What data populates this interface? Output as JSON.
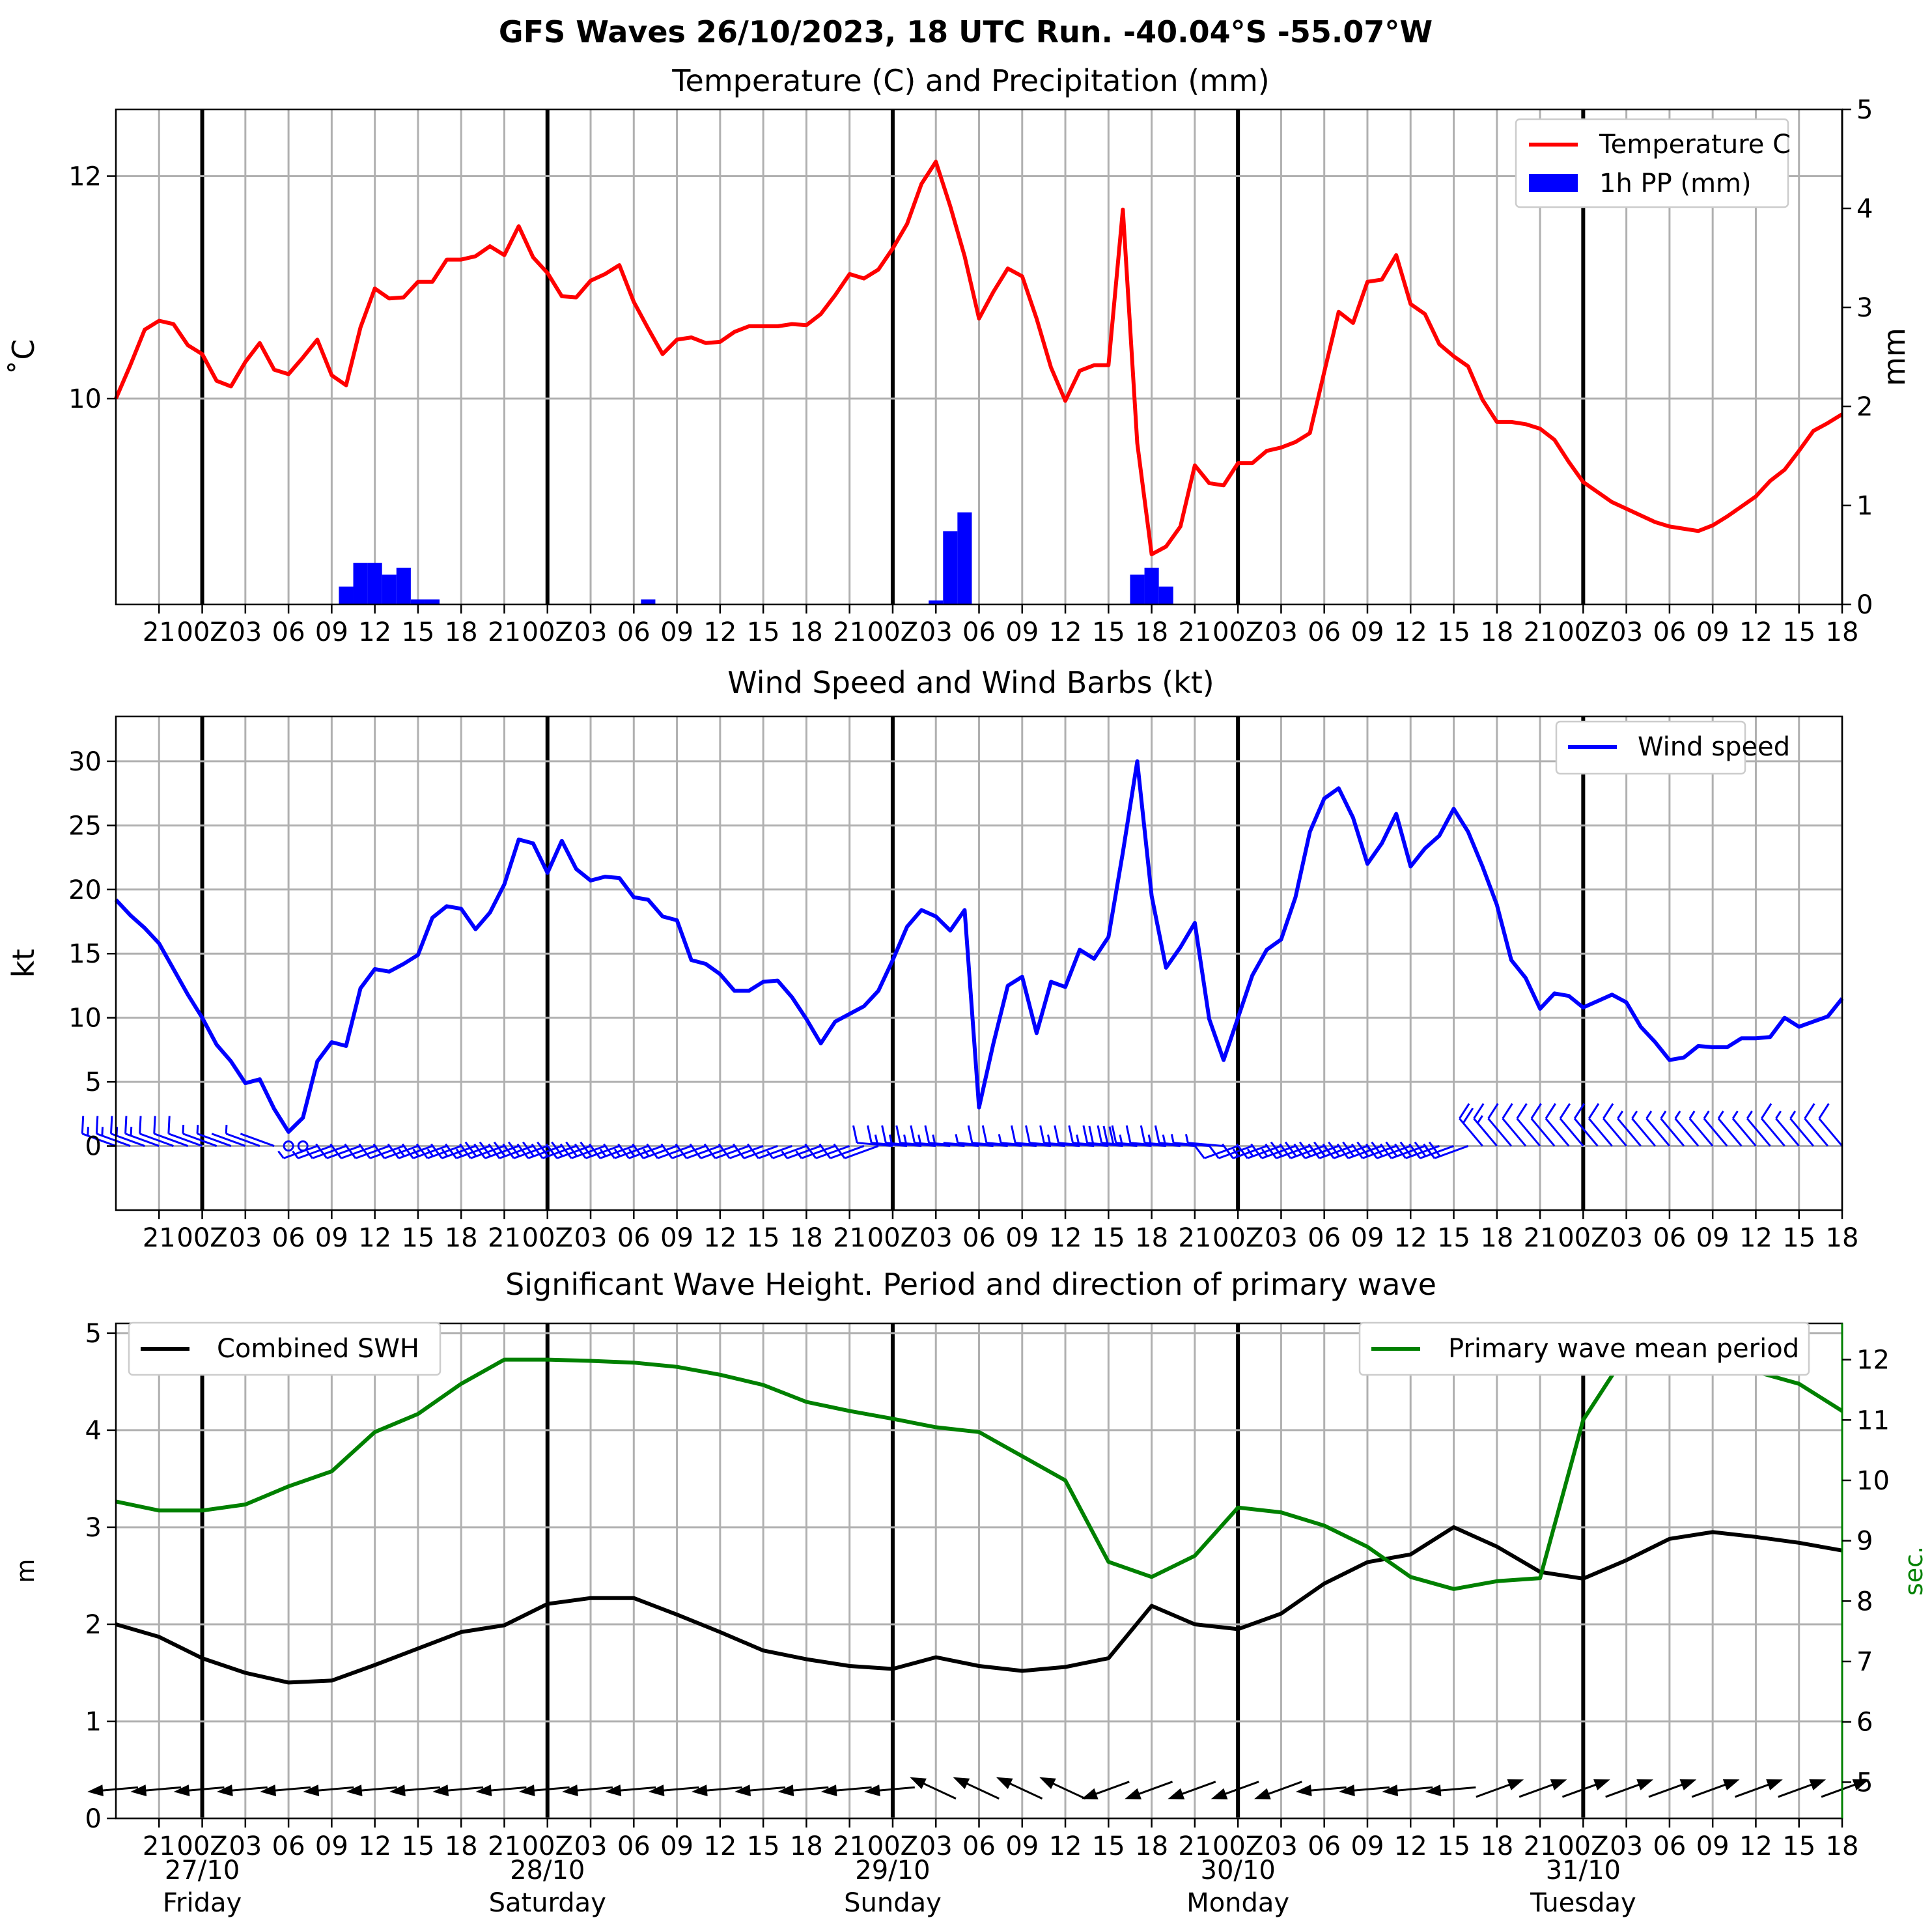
{
  "suptitle": "GFS Waves 26/10/2023, 18 UTC Run. -40.04°S -55.07°W",
  "x_ticks": [
    "21",
    "00Z",
    "03",
    "06",
    "09",
    "12",
    "15",
    "18",
    "21",
    "00Z",
    "03",
    "06",
    "09",
    "12",
    "15",
    "18",
    "21",
    "00Z",
    "03",
    "06",
    "09",
    "12",
    "15",
    "18",
    "21",
    "00Z",
    "03",
    "06",
    "09",
    "12",
    "15",
    "18",
    "21",
    "00Z",
    "03",
    "06",
    "09",
    "12",
    "15",
    "18"
  ],
  "bottom_x_ticks": [
    "21",
    "00Z",
    "03",
    "06",
    "09",
    "12",
    "15",
    "18",
    "21",
    "00Z",
    "03",
    "06",
    "09",
    "12",
    "15",
    "18",
    "21",
    "00Z",
    "03",
    "06",
    "09",
    "12",
    "15",
    "18",
    "21",
    "00Z",
    "03",
    "06",
    "09",
    "12",
    "15",
    "18",
    "21",
    "00Z",
    "03",
    "06",
    "09",
    "12",
    "15",
    "18"
  ],
  "days": [
    {
      "date": "27/10",
      "day": "Friday"
    },
    {
      "date": "28/10",
      "day": "Saturday"
    },
    {
      "date": "29/10",
      "day": "Sunday"
    },
    {
      "date": "30/10",
      "day": "Monday"
    },
    {
      "date": "31/10",
      "day": "Tuesday"
    }
  ],
  "chart_data": [
    {
      "type": "line",
      "title": "Temperature (C) and Precipitation (mm)",
      "ylabel": "$^\\circ$C",
      "ylabel_display": "˚C",
      "ylabel_right": "mm",
      "x_unit": "hours from 26/10 18 UTC",
      "xlim": [
        0,
        120
      ],
      "ylim": [
        8.15,
        12.6
      ],
      "y_ticks": [
        "10",
        "12"
      ],
      "ylim_right": [
        0,
        5
      ],
      "y_ticks_right": [
        "0",
        "1",
        "2",
        "3",
        "4",
        "5"
      ],
      "legend_position": "upper right",
      "grid": true,
      "series": [
        {
          "name": "Temperature C",
          "color": "#ff0000",
          "x": [
            0,
            1,
            2,
            3,
            4,
            5,
            6,
            7,
            8,
            9,
            10,
            11,
            12,
            13,
            14,
            15,
            16,
            17,
            18,
            19,
            20,
            21,
            22,
            23,
            24,
            25,
            26,
            27,
            28,
            29,
            30,
            31,
            32,
            33,
            34,
            35,
            36,
            37,
            38,
            39,
            40,
            41,
            42,
            43,
            44,
            45,
            46,
            47,
            48,
            49,
            50,
            51,
            52,
            53,
            54,
            55,
            56,
            57,
            58,
            59,
            60,
            61,
            62,
            63,
            64,
            65,
            66,
            67,
            68,
            69,
            70,
            71,
            72,
            73,
            74,
            75,
            76,
            77,
            78,
            79,
            80,
            81,
            82,
            83,
            84,
            85,
            86,
            87,
            88,
            89,
            90,
            91,
            92,
            93,
            94,
            95,
            96,
            97,
            98,
            99,
            100,
            101,
            102,
            103,
            104,
            105,
            106,
            107,
            108,
            109,
            110,
            111,
            112,
            113,
            114,
            115,
            116,
            117,
            118,
            119,
            120
          ],
          "values": [
            10.0,
            10.3,
            10.62,
            10.7,
            10.67,
            10.48,
            10.4,
            10.16,
            10.11,
            10.33,
            10.5,
            10.26,
            10.22,
            10.37,
            10.53,
            10.21,
            10.12,
            10.64,
            10.99,
            10.9,
            10.91,
            11.05,
            11.05,
            11.25,
            11.25,
            11.28,
            11.37,
            11.29,
            11.55,
            11.27,
            11.13,
            10.92,
            10.91,
            11.06,
            11.12,
            11.2,
            10.87,
            10.63,
            10.4,
            10.53,
            10.55,
            10.5,
            10.51,
            10.6,
            10.65,
            10.65,
            10.65,
            10.67,
            10.66,
            10.76,
            10.93,
            11.12,
            11.08,
            11.16,
            11.35,
            11.57,
            11.93,
            12.13,
            11.73,
            11.28,
            10.72,
            10.96,
            11.17,
            11.1,
            10.72,
            10.28,
            9.98,
            10.25,
            10.3,
            10.3,
            11.7,
            9.6,
            8.6,
            8.67,
            8.85,
            9.4,
            9.24,
            9.22,
            9.42,
            9.42,
            9.53,
            9.56,
            9.61,
            9.69,
            10.24,
            10.78,
            10.68,
            11.05,
            11.07,
            11.29,
            10.85,
            10.76,
            10.49,
            10.38,
            10.29,
            9.99,
            9.79,
            9.79,
            9.77,
            9.73,
            9.63,
            9.43,
            9.25,
            9.16,
            9.07,
            9.01,
            8.95,
            8.89,
            8.85,
            8.83,
            8.81,
            8.86,
            8.94,
            9.03,
            9.12,
            9.26,
            9.36,
            9.53,
            9.71,
            9.78,
            9.86
          ]
        },
        {
          "name": "1h PP (mm)",
          "type": "bar",
          "axis": "right",
          "color": "#0000ff",
          "x": [
            16,
            17,
            18,
            19,
            20,
            21,
            22,
            37,
            57,
            58,
            59,
            71,
            72,
            73
          ],
          "values": [
            0.18,
            0.42,
            0.42,
            0.3,
            0.37,
            0.05,
            0.05,
            0.05,
            0.04,
            0.74,
            0.93,
            0.3,
            0.37,
            0.18
          ]
        }
      ]
    },
    {
      "type": "line",
      "title": "Wind Speed and Wind Barbs (kt)",
      "ylabel": "kt",
      "x_unit": "hours from 26/10 18 UTC",
      "xlim": [
        0,
        120
      ],
      "ylim": [
        -5,
        33.5
      ],
      "y_ticks": [
        "0",
        "5",
        "10",
        "15",
        "20",
        "25",
        "30"
      ],
      "legend_position": "upper right",
      "grid": true,
      "series": [
        {
          "name": "Wind speed",
          "color": "#0000ff",
          "x": [
            0,
            1,
            2,
            3,
            4,
            5,
            6,
            7,
            8,
            9,
            10,
            11,
            12,
            13,
            14,
            15,
            16,
            17,
            18,
            19,
            20,
            21,
            22,
            23,
            24,
            25,
            26,
            27,
            28,
            29,
            30,
            31,
            32,
            33,
            34,
            35,
            36,
            37,
            38,
            39,
            40,
            41,
            42,
            43,
            44,
            45,
            46,
            47,
            48,
            49,
            50,
            51,
            52,
            53,
            54,
            55,
            56,
            57,
            58,
            59,
            60,
            61,
            62,
            63,
            64,
            65,
            66,
            67,
            68,
            69,
            70,
            71,
            72,
            73,
            74,
            75,
            76,
            77,
            78,
            79,
            80,
            81,
            82,
            83,
            84,
            85,
            86,
            87,
            88,
            89,
            90,
            91,
            92,
            93,
            94,
            95,
            96,
            97,
            98,
            99,
            100,
            101,
            102,
            103,
            104,
            105,
            106,
            107,
            108,
            109,
            110,
            111,
            112,
            113,
            114,
            115,
            116,
            117,
            118,
            119,
            120
          ],
          "values": [
            19.2,
            18.0,
            17.0,
            15.8,
            13.8,
            11.8,
            10.0,
            7.9,
            6.6,
            4.9,
            5.2,
            2.9,
            1.1,
            2.2,
            6.6,
            8.1,
            7.8,
            12.3,
            13.8,
            13.6,
            14.2,
            14.9,
            17.8,
            18.7,
            18.5,
            16.9,
            18.2,
            20.4,
            23.9,
            23.6,
            21.3,
            23.8,
            21.6,
            20.7,
            21.0,
            20.9,
            19.4,
            19.2,
            17.9,
            17.6,
            14.5,
            14.2,
            13.4,
            12.1,
            12.1,
            12.8,
            12.9,
            11.6,
            9.9,
            8.0,
            9.7,
            10.3,
            10.9,
            12.1,
            14.5,
            17.1,
            18.4,
            17.9,
            16.8,
            18.4,
            3.0,
            8.0,
            12.5,
            13.2,
            8.8,
            12.8,
            12.4,
            15.3,
            14.6,
            16.3,
            22.9,
            30.0,
            19.5,
            13.9,
            15.5,
            17.4,
            9.9,
            6.7,
            10.0,
            13.3,
            15.3,
            16.1,
            19.4,
            24.5,
            27.1,
            27.9,
            25.6,
            22.0,
            23.6,
            25.9,
            21.8,
            23.2,
            24.2,
            26.3,
            24.5,
            21.8,
            18.8,
            14.5,
            13.1,
            10.7,
            11.9,
            11.7,
            10.8,
            11.3,
            11.8,
            11.2,
            9.3,
            8.1,
            6.7,
            6.9,
            7.8,
            7.7,
            7.7,
            8.4,
            8.4,
            8.5,
            10.0,
            9.3,
            9.7,
            10.1,
            11.5
          ]
        }
      ],
      "wind_barbs": {
        "x": [
          0,
          1,
          2,
          3,
          4,
          5,
          6,
          7,
          8,
          9,
          10,
          11,
          12,
          13,
          14,
          15,
          16,
          17,
          18,
          19,
          20,
          21,
          22,
          23,
          24,
          25,
          26,
          27,
          28,
          29,
          30,
          31,
          32,
          33,
          34,
          35,
          36,
          37,
          38,
          39,
          40,
          41,
          42,
          43,
          44,
          45,
          46,
          47,
          48,
          49,
          50,
          51,
          52,
          53,
          54,
          55,
          56,
          57,
          58,
          59,
          60,
          61,
          62,
          63,
          64,
          65,
          66,
          67,
          68,
          69,
          70,
          71,
          72,
          73,
          74,
          75,
          76,
          77,
          78,
          79,
          80,
          81,
          82,
          83,
          84,
          85,
          86,
          87,
          88,
          89,
          90,
          91,
          92,
          93,
          94,
          95,
          96,
          97,
          98,
          99,
          100,
          101,
          102,
          103,
          104,
          105,
          106,
          107,
          108,
          109,
          110,
          111,
          112,
          113,
          114,
          115,
          116,
          117,
          118,
          119,
          120
        ],
        "speed_kt": [
          19.2,
          18.0,
          17.0,
          15.8,
          13.8,
          11.8,
          10.0,
          7.9,
          6.6,
          4.9,
          5.2,
          2.9,
          1.1,
          2.2,
          6.6,
          8.1,
          7.8,
          12.3,
          13.8,
          13.6,
          14.2,
          14.9,
          17.8,
          18.7,
          18.5,
          16.9,
          18.2,
          20.4,
          23.9,
          23.6,
          21.3,
          23.8,
          21.6,
          20.7,
          21.0,
          20.9,
          19.4,
          19.2,
          17.9,
          17.6,
          14.5,
          14.2,
          13.4,
          12.1,
          12.1,
          12.8,
          12.9,
          11.6,
          9.9,
          8.0,
          9.7,
          10.3,
          10.9,
          12.1,
          14.5,
          17.1,
          18.4,
          17.9,
          16.8,
          18.4,
          3.0,
          8.0,
          12.5,
          13.2,
          8.8,
          12.8,
          12.4,
          15.3,
          14.6,
          16.3,
          22.9,
          30.0,
          19.5,
          13.9,
          15.5,
          17.4,
          9.9,
          6.7,
          10.0,
          13.3,
          15.3,
          16.1,
          19.4,
          24.5,
          27.1,
          27.9,
          25.6,
          22.0,
          23.6,
          25.9,
          21.8,
          23.2,
          24.2,
          26.3,
          24.5,
          21.8,
          18.8,
          14.5,
          13.1,
          10.7,
          11.9,
          11.7,
          10.8,
          11.3,
          11.8,
          11.2,
          9.3,
          8.1,
          6.7,
          6.9,
          7.8,
          7.7,
          7.7,
          8.4,
          8.4,
          8.5,
          10.0,
          9.3,
          9.7,
          10.1,
          11.5
        ],
        "color": "#0000ff"
      }
    },
    {
      "type": "line",
      "title": "Significant Wave Height. Period and direction of primary wave",
      "ylabel": "m",
      "ylabel_right": "sec.",
      "x_unit": "hours from 26/10 18 UTC",
      "xlim": [
        0,
        120
      ],
      "ylim": [
        0,
        5.1
      ],
      "y_ticks": [
        "0",
        "1",
        "2",
        "3",
        "4",
        "5"
      ],
      "ylim_right": [
        4.4,
        12.6
      ],
      "y_ticks_right": [
        "5",
        "6",
        "7",
        "8",
        "9",
        "10",
        "11",
        "12"
      ],
      "grid": true,
      "series": [
        {
          "name": "Combined SWH",
          "color": "#000000",
          "legend_position": "upper left",
          "x": [
            0,
            3,
            6,
            9,
            12,
            15,
            18,
            21,
            24,
            27,
            30,
            33,
            36,
            39,
            42,
            45,
            48,
            51,
            54,
            57,
            60,
            63,
            66,
            69,
            72,
            75,
            78,
            81,
            84,
            87,
            90,
            93,
            96,
            99,
            102,
            105,
            108,
            111,
            114,
            117,
            120
          ],
          "values": [
            2.0,
            1.87,
            1.65,
            1.5,
            1.4,
            1.42,
            1.58,
            1.75,
            1.92,
            1.99,
            2.21,
            2.27,
            2.27,
            2.1,
            1.92,
            1.73,
            1.64,
            1.57,
            1.54,
            1.66,
            1.57,
            1.52,
            1.56,
            1.65,
            2.19,
            2.0,
            1.95,
            2.11,
            2.42,
            2.64,
            2.72,
            3.0,
            2.8,
            2.54,
            2.47,
            2.66,
            2.88,
            2.95,
            2.9,
            2.84,
            2.76
          ]
        },
        {
          "name": "Primary wave mean period",
          "color": "#008000",
          "axis": "right",
          "legend_position": "upper right",
          "x": [
            0,
            3,
            6,
            9,
            12,
            15,
            18,
            21,
            24,
            27,
            30,
            33,
            36,
            39,
            42,
            45,
            48,
            51,
            54,
            57,
            60,
            63,
            66,
            69,
            72,
            75,
            78,
            81,
            84,
            87,
            90,
            93,
            96,
            99,
            102,
            105,
            108,
            111,
            114,
            117,
            120
          ],
          "values": [
            9.65,
            9.5,
            9.5,
            9.6,
            9.9,
            10.15,
            10.8,
            11.1,
            11.6,
            12.0,
            12.0,
            11.98,
            11.95,
            11.88,
            11.75,
            11.58,
            11.3,
            11.15,
            11.02,
            10.88,
            10.8,
            10.4,
            10.0,
            8.65,
            8.4,
            8.75,
            9.55,
            9.47,
            9.25,
            8.9,
            8.4,
            8.2,
            8.33,
            8.38,
            11.0,
            12.1,
            11.95,
            11.9,
            11.8,
            11.6,
            11.15
          ]
        }
      ],
      "primary_wave_direction_arrows": {
        "x": [
          0,
          3,
          6,
          9,
          12,
          15,
          18,
          21,
          24,
          27,
          30,
          33,
          36,
          39,
          42,
          45,
          48,
          51,
          54,
          57,
          60,
          63,
          66,
          69,
          72,
          75,
          78,
          81,
          84,
          87,
          90,
          93,
          96,
          99,
          102,
          105,
          108,
          111,
          114,
          117,
          120
        ],
        "color": "#000000"
      }
    }
  ]
}
